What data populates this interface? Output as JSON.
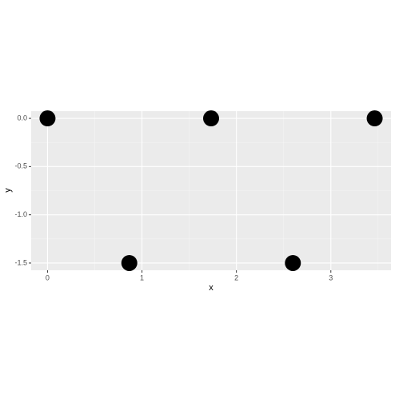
{
  "chart_data": {
    "type": "scatter",
    "x": [
      0,
      0.866,
      1.732,
      2.598,
      3.464
    ],
    "values": [
      0,
      -1.5,
      0,
      -1.5,
      0
    ],
    "color": "#000000",
    "xlabel": "x",
    "ylabel": "y",
    "xlim": [
      -0.173,
      3.637
    ],
    "ylim": [
      -1.575,
      0.075
    ],
    "xticks": [
      0,
      1,
      2,
      3
    ],
    "yticks": [
      {
        "value": 0,
        "label": "0.0"
      },
      -0.5,
      {
        "value": -1,
        "label": "-1.0"
      },
      -1.5
    ],
    "grid": true
  }
}
